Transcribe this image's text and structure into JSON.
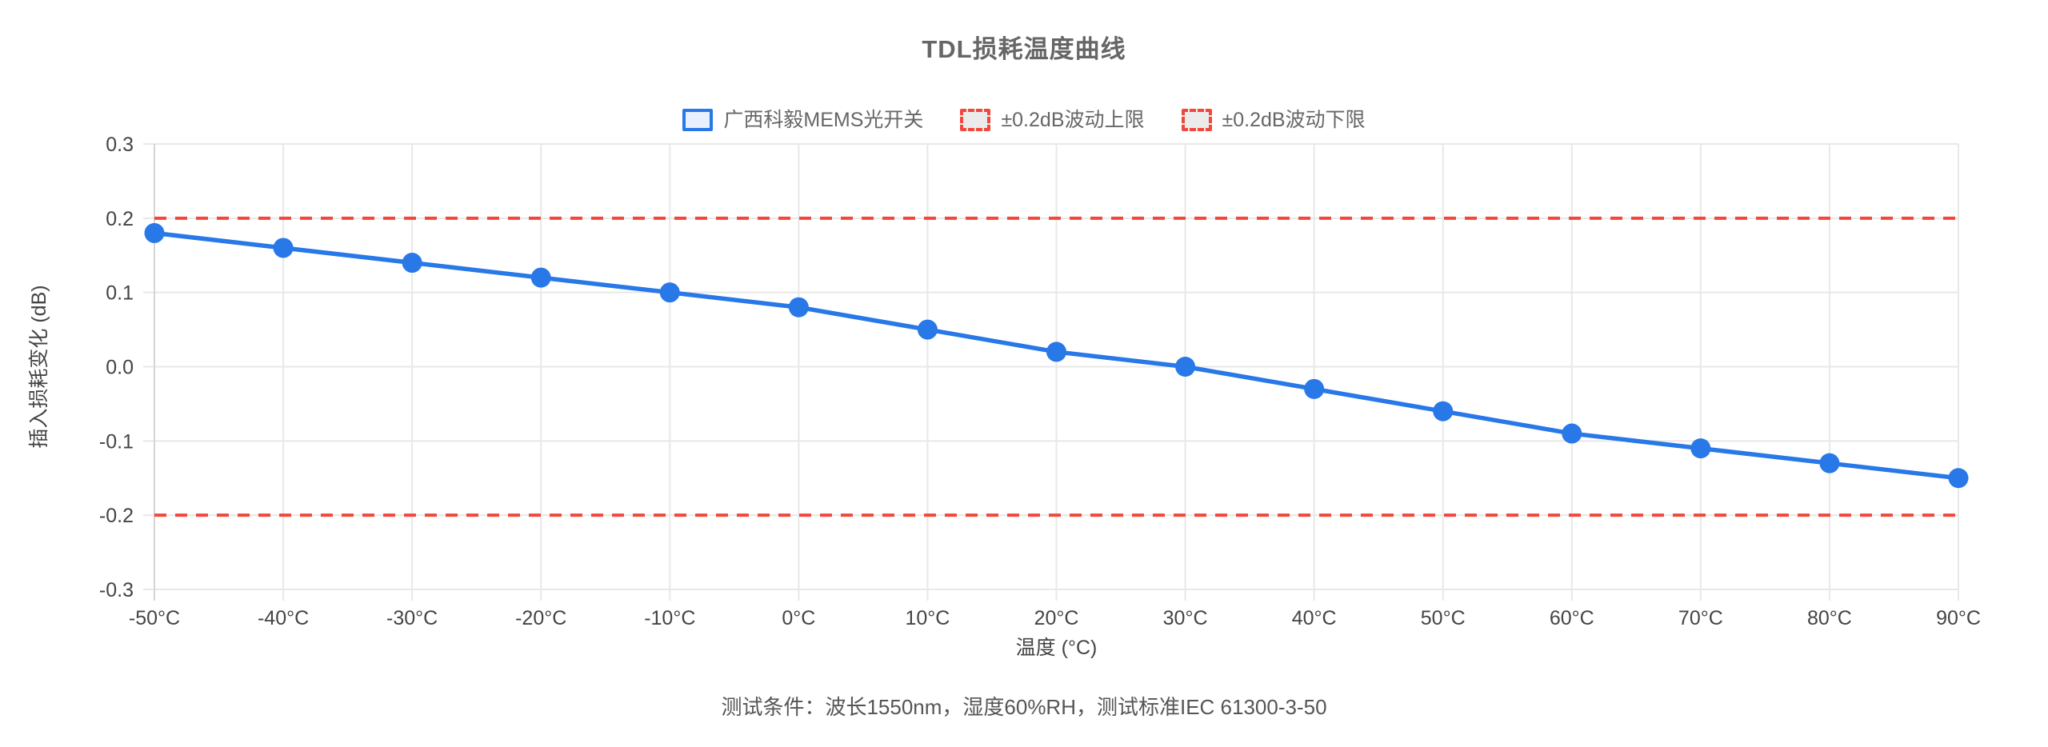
{
  "title": "TDL损耗温度曲线",
  "footer": "测试条件：波长1550nm，湿度60%RH，测试标准IEC 61300-3-50",
  "legend": {
    "items": [
      {
        "label": "广西科毅MEMS光开关",
        "swatch": "solid-blue"
      },
      {
        "label": "±0.2dB波动上限",
        "swatch": "dashed-red"
      },
      {
        "label": "±0.2dB波动下限",
        "swatch": "dashed-red"
      }
    ]
  },
  "colors": {
    "series_blue": "#2878e8",
    "series_blue_fill": "#e8f0fd",
    "limit_red": "#f2473b",
    "limit_red_fill": "#ebebeb",
    "grid": "#e8e8e8",
    "axis_line": "#d4d4d4",
    "tick_label": "#444444",
    "axis_title": "#444444",
    "title_text": "#666666",
    "legend_text": "#666666",
    "footer_text": "#555555"
  },
  "chart_data": {
    "type": "line",
    "title": "TDL损耗温度曲线",
    "x": [
      -50,
      -40,
      -30,
      -20,
      -10,
      0,
      10,
      20,
      30,
      40,
      50,
      60,
      70,
      80,
      90
    ],
    "x_tick_labels": [
      "-50°C",
      "-40°C",
      "-30°C",
      "-20°C",
      "-10°C",
      "0°C",
      "10°C",
      "20°C",
      "30°C",
      "40°C",
      "50°C",
      "60°C",
      "70°C",
      "80°C",
      "90°C"
    ],
    "y_ticks": [
      0.3,
      0.2,
      0.1,
      0.0,
      -0.1,
      -0.2,
      -0.3
    ],
    "y_tick_labels": [
      "0.3",
      "0.2",
      "0.1",
      "0.0",
      "-0.1",
      "-0.2",
      "-0.3"
    ],
    "ylim": [
      -0.3,
      0.3
    ],
    "xlabel": "温度 (°C)",
    "ylabel": "插入损耗变化 (dB)",
    "grid": true,
    "legend_position": "top",
    "series": [
      {
        "name": "广西科毅MEMS光开关",
        "role": "main",
        "line_style": "solid",
        "markers": true,
        "color": "#2878e8",
        "values": [
          0.18,
          0.16,
          0.14,
          0.12,
          0.1,
          0.08,
          0.05,
          0.02,
          0.0,
          -0.03,
          -0.06,
          -0.09,
          -0.11,
          -0.13,
          -0.15
        ]
      },
      {
        "name": "±0.2dB波动上限",
        "role": "upper-limit",
        "line_style": "dashed",
        "markers": false,
        "color": "#f2473b",
        "value": 0.2
      },
      {
        "name": "±0.2dB波动下限",
        "role": "lower-limit",
        "line_style": "dashed",
        "markers": false,
        "color": "#f2473b",
        "value": -0.2
      }
    ],
    "note": "测试条件：波长1550nm，湿度60%RH，测试标准IEC 61300-3-50"
  }
}
